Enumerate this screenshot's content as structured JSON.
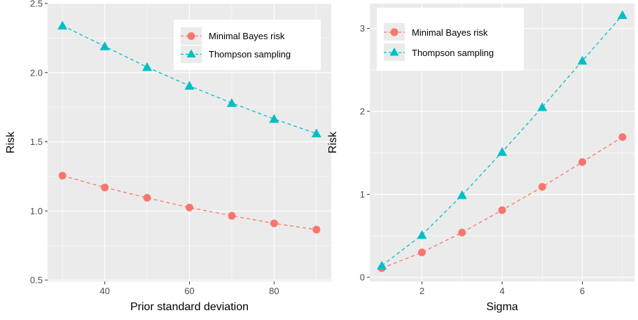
{
  "colors": {
    "minimal": "#F8766D",
    "thompson": "#00BFC4"
  },
  "chart_data": [
    {
      "type": "line",
      "xlabel": "Prior standard deviation",
      "ylabel": "Risk",
      "x": [
        30,
        40,
        50,
        60,
        70,
        80,
        90
      ],
      "xlim": [
        26.5,
        93.5
      ],
      "ylim": [
        0.49,
        2.5
      ],
      "x_ticks": [
        "40",
        "60",
        "80"
      ],
      "y_ticks": [
        "0.5",
        "1.0",
        "1.5",
        "2.0",
        "2.5"
      ],
      "series": [
        {
          "name": "Minimal Bayes risk",
          "values": [
            1.255,
            1.17,
            1.095,
            1.025,
            0.965,
            0.91,
            0.865
          ],
          "marker": "circle",
          "line": "dashed"
        },
        {
          "name": "Thompson sampling",
          "values": [
            2.34,
            2.19,
            2.04,
            1.905,
            1.78,
            1.665,
            1.56
          ],
          "marker": "triangle",
          "line": "dashed"
        }
      ],
      "legend_position": "top-right",
      "grid": true
    },
    {
      "type": "line",
      "xlabel": "Sigma",
      "ylabel": "Risk",
      "x": [
        1,
        2,
        3,
        4,
        5,
        6,
        7
      ],
      "xlim": [
        0.7,
        7.3
      ],
      "ylim": [
        -0.05,
        3.3
      ],
      "x_ticks": [
        "2",
        "4",
        "6"
      ],
      "y_ticks": [
        "0",
        "1",
        "2",
        "3"
      ],
      "series": [
        {
          "name": "Minimal Bayes risk",
          "values": [
            0.11,
            0.3,
            0.54,
            0.81,
            1.09,
            1.39,
            1.69
          ],
          "marker": "circle",
          "line": "dashed"
        },
        {
          "name": "Thompson sampling",
          "values": [
            0.14,
            0.51,
            0.99,
            1.51,
            2.05,
            2.61,
            3.16
          ],
          "marker": "triangle",
          "line": "dashed"
        }
      ],
      "legend_position": "top-left",
      "grid": true
    }
  ]
}
